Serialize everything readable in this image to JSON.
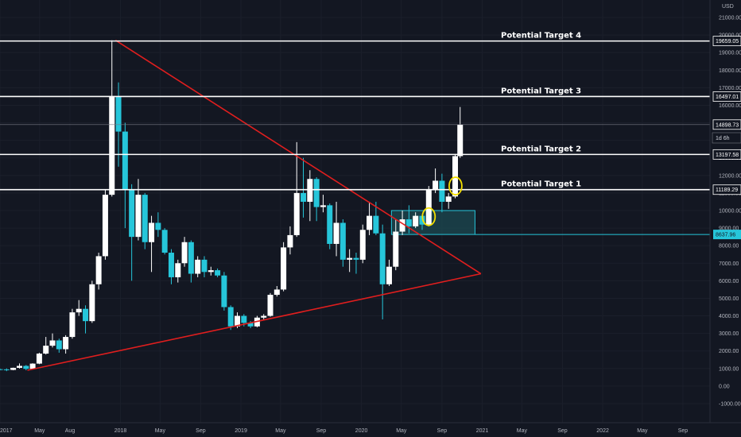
{
  "colors": {
    "background": "#131722",
    "up_candle": "#ffffff",
    "down_candle": "#26c6da",
    "triangle": "#e01e1e",
    "target_line": "#ffffff",
    "box_fill": "#1c4a52",
    "box_stroke": "#26c6da",
    "circle": "#f5e000",
    "axis_text": "#b2b5be"
  },
  "chart_data": {
    "type": "candlestick",
    "currency": "USD",
    "timeframe_badge": "1d 6h",
    "y_axis": {
      "scale": "linear",
      "ylim": [
        -1000,
        22000
      ],
      "tick_labels": [
        "21000.00",
        "20000.00",
        "19000.00",
        "18000.00",
        "17000.00",
        "16000.00",
        "15000.00",
        "14000.00",
        "13000.00",
        "12000.00",
        "11000.00",
        "10000.00",
        "9000.00",
        "8000.00",
        "7000.00",
        "6000.00",
        "5000.00",
        "4000.00",
        "3000.00",
        "2000.00",
        "1000.00",
        "0.00",
        "-1000.00"
      ],
      "tick_values": [
        21000,
        20000,
        19000,
        18000,
        17000,
        16000,
        15000,
        14000,
        13000,
        12000,
        11000,
        10000,
        9000,
        8000,
        7000,
        6000,
        5000,
        4000,
        3000,
        2000,
        1000,
        0,
        -1000
      ]
    },
    "x_axis": {
      "start": "2017-01",
      "end": "2022-11",
      "tick_labels": [
        "2017",
        "May",
        "Aug",
        "2018",
        "May",
        "Sep",
        "2019",
        "May",
        "Sep",
        "2020",
        "May",
        "Sep",
        "2021",
        "May",
        "Sep",
        "2022",
        "May",
        "Sep"
      ],
      "tick_dates": [
        "2017-01",
        "2017-05",
        "2017-08",
        "2018-01",
        "2018-05",
        "2018-09",
        "2019-01",
        "2019-05",
        "2019-09",
        "2020-01",
        "2020-05",
        "2020-09",
        "2021-01",
        "2021-05",
        "2021-09",
        "2022-01",
        "2022-05",
        "2022-09"
      ]
    },
    "price_levels": [
      {
        "label": "Potential Target 4",
        "value": 19659.05,
        "tag": "19659.05"
      },
      {
        "label": "Potential Target 3",
        "value": 16497.01,
        "tag": "16497.01"
      },
      {
        "label": "",
        "value": 14898.73,
        "tag": "14898.73",
        "kind": "current-price"
      },
      {
        "label": "Potential Target 2",
        "value": 13197.58,
        "tag": "13197.58"
      },
      {
        "label": "Potential Target 1",
        "value": 11189.29,
        "tag": "11189.29"
      },
      {
        "label": "",
        "value": 8637.96,
        "tag": "8637.96",
        "kind": "support"
      }
    ],
    "triangle": {
      "upper_line": [
        [
          "2017-12-17",
          19700
        ],
        [
          "2020-12-28",
          6400
        ]
      ],
      "lower_line": [
        [
          "2017-03-25",
          900
        ],
        [
          "2020-12-28",
          6400
        ]
      ]
    },
    "zone": {
      "x_start": "2020-04-01",
      "x_end": "2020-12-10",
      "y_low": 8637.96,
      "y_high": 10000
    },
    "highlight_circles": [
      [
        "2020-07-23",
        9650
      ],
      [
        "2020-10-12",
        11400
      ]
    ],
    "series": [
      {
        "values_format": "date,open,high,low,close",
        "values": [
          [
            "2017-01-01",
            960,
            1000,
            900,
            950
          ],
          [
            "2017-01-21",
            950,
            1010,
            850,
            920
          ],
          [
            "2017-02-10",
            920,
            1050,
            900,
            1040
          ],
          [
            "2017-03-01",
            1040,
            1290,
            1000,
            1150
          ],
          [
            "2017-03-21",
            1150,
            1200,
            900,
            980
          ],
          [
            "2017-04-10",
            980,
            1300,
            970,
            1280
          ],
          [
            "2017-04-30",
            1280,
            1900,
            1250,
            1850
          ],
          [
            "2017-05-20",
            1850,
            2800,
            1800,
            2300
          ],
          [
            "2017-06-09",
            2300,
            3000,
            2200,
            2600
          ],
          [
            "2017-06-29",
            2600,
            2700,
            1900,
            2100
          ],
          [
            "2017-07-19",
            2100,
            2900,
            1850,
            2800
          ],
          [
            "2017-08-08",
            2800,
            4400,
            2700,
            4200
          ],
          [
            "2017-08-28",
            4200,
            4900,
            4000,
            4400
          ],
          [
            "2017-09-17",
            4400,
            4600,
            3000,
            3700
          ],
          [
            "2017-10-07",
            3700,
            6000,
            3600,
            5800
          ],
          [
            "2017-10-27",
            5800,
            7600,
            5500,
            7400
          ],
          [
            "2017-11-16",
            7400,
            11200,
            7200,
            10900
          ],
          [
            "2017-12-06",
            10900,
            19700,
            10800,
            16500
          ],
          [
            "2017-12-26",
            16500,
            17300,
            12500,
            14500
          ],
          [
            "2018-01-15",
            14500,
            15000,
            9000,
            11200
          ],
          [
            "2018-02-04",
            11200,
            11500,
            6000,
            8500
          ],
          [
            "2018-02-24",
            8500,
            11800,
            8300,
            10900
          ],
          [
            "2018-03-16",
            10900,
            11000,
            7800,
            8200
          ],
          [
            "2018-04-05",
            8200,
            9700,
            6500,
            9300
          ],
          [
            "2018-04-25",
            9300,
            9900,
            8500,
            8900
          ],
          [
            "2018-05-15",
            8900,
            9000,
            7500,
            7600
          ],
          [
            "2018-06-04",
            7600,
            7800,
            5800,
            6200
          ],
          [
            "2018-06-24",
            6200,
            7200,
            5900,
            7000
          ],
          [
            "2018-07-14",
            7000,
            8500,
            6800,
            8200
          ],
          [
            "2018-08-03",
            8200,
            8300,
            5900,
            6400
          ],
          [
            "2018-08-23",
            6400,
            7400,
            6200,
            7200
          ],
          [
            "2018-09-12",
            7200,
            7400,
            6200,
            6500
          ],
          [
            "2018-10-02",
            6500,
            6800,
            6300,
            6600
          ],
          [
            "2018-10-22",
            6600,
            6700,
            6200,
            6300
          ],
          [
            "2018-11-11",
            6300,
            6500,
            4300,
            4500
          ],
          [
            "2018-12-01",
            4500,
            4600,
            3200,
            3400
          ],
          [
            "2018-12-21",
            3400,
            4200,
            3300,
            4000
          ],
          [
            "2019-01-10",
            4000,
            4100,
            3400,
            3600
          ],
          [
            "2019-01-30",
            3600,
            3700,
            3300,
            3400
          ],
          [
            "2019-02-19",
            3400,
            4000,
            3350,
            3900
          ],
          [
            "2019-03-11",
            3900,
            4100,
            3800,
            4000
          ],
          [
            "2019-03-31",
            4000,
            5300,
            3950,
            5200
          ],
          [
            "2019-04-20",
            5200,
            5700,
            5100,
            5500
          ],
          [
            "2019-05-10",
            5500,
            8200,
            5400,
            7900
          ],
          [
            "2019-05-30",
            7900,
            9100,
            7500,
            8600
          ],
          [
            "2019-06-19",
            8600,
            13900,
            8500,
            11000
          ],
          [
            "2019-07-09",
            11000,
            13000,
            9600,
            10500
          ],
          [
            "2019-07-29",
            10500,
            12300,
            9400,
            11800
          ],
          [
            "2019-08-18",
            11800,
            11900,
            9400,
            10200
          ],
          [
            "2019-09-07",
            10200,
            10900,
            9900,
            10300
          ],
          [
            "2019-09-27",
            10300,
            10400,
            7800,
            8100
          ],
          [
            "2019-10-17",
            8100,
            10500,
            7400,
            9300
          ],
          [
            "2019-11-06",
            9300,
            9500,
            6800,
            7200
          ],
          [
            "2019-11-26",
            7200,
            7800,
            6500,
            7300
          ],
          [
            "2019-12-16",
            7300,
            7600,
            6400,
            7200
          ],
          [
            "2020-01-05",
            7200,
            9200,
            7000,
            8900
          ],
          [
            "2020-01-25",
            8900,
            10500,
            8600,
            9700
          ],
          [
            "2020-02-14",
            9700,
            10500,
            8600,
            8700
          ],
          [
            "2020-03-05",
            8700,
            9200,
            3800,
            5800
          ],
          [
            "2020-03-25",
            5800,
            7200,
            5700,
            6800
          ],
          [
            "2020-04-14",
            6800,
            9500,
            6600,
            8800
          ],
          [
            "2020-05-04",
            8800,
            10000,
            8600,
            9500
          ],
          [
            "2020-05-24",
            9500,
            10300,
            8700,
            9100
          ],
          [
            "2020-06-13",
            9100,
            9900,
            9000,
            9700
          ],
          [
            "2020-07-03",
            9700,
            9800,
            8900,
            9200
          ],
          [
            "2020-07-23",
            9200,
            11400,
            9100,
            11200
          ],
          [
            "2020-08-12",
            11200,
            12400,
            11000,
            11700
          ],
          [
            "2020-09-01",
            11700,
            12100,
            9900,
            10500
          ],
          [
            "2020-09-21",
            10500,
            11000,
            10100,
            10800
          ],
          [
            "2020-10-11",
            10800,
            13200,
            10700,
            13100
          ],
          [
            "2020-10-26",
            13100,
            15900,
            13000,
            14900
          ]
        ]
      }
    ]
  }
}
